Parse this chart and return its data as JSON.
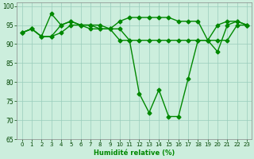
{
  "title": "",
  "xlabel": "Humidité relative (%)",
  "ylabel": "",
  "background_color": "#cceedd",
  "grid_color": "#99ccbb",
  "line_color": "#008800",
  "xlim": [
    -0.5,
    23.5
  ],
  "ylim": [
    65,
    101
  ],
  "yticks": [
    65,
    70,
    75,
    80,
    85,
    90,
    95,
    100
  ],
  "xticks": [
    0,
    1,
    2,
    3,
    4,
    5,
    6,
    7,
    8,
    9,
    10,
    11,
    12,
    13,
    14,
    15,
    16,
    17,
    18,
    19,
    20,
    21,
    22,
    23
  ],
  "series1": [
    93,
    94,
    92,
    92,
    95,
    96,
    95,
    95,
    94,
    94,
    94,
    91,
    91,
    91,
    91,
    91,
    91,
    91,
    91,
    91,
    91,
    91,
    95,
    95
  ],
  "series2": [
    93,
    94,
    92,
    98,
    95,
    96,
    95,
    95,
    95,
    94,
    96,
    97,
    97,
    97,
    97,
    97,
    96,
    96,
    96,
    91,
    95,
    96,
    96,
    95
  ],
  "series3": [
    93,
    94,
    92,
    92,
    93,
    95,
    95,
    94,
    94,
    94,
    91,
    91,
    77,
    72,
    78,
    71,
    71,
    81,
    91,
    91,
    88,
    95,
    96,
    95
  ],
  "marker": "D",
  "markersize": 2.5,
  "linewidth": 1.0
}
